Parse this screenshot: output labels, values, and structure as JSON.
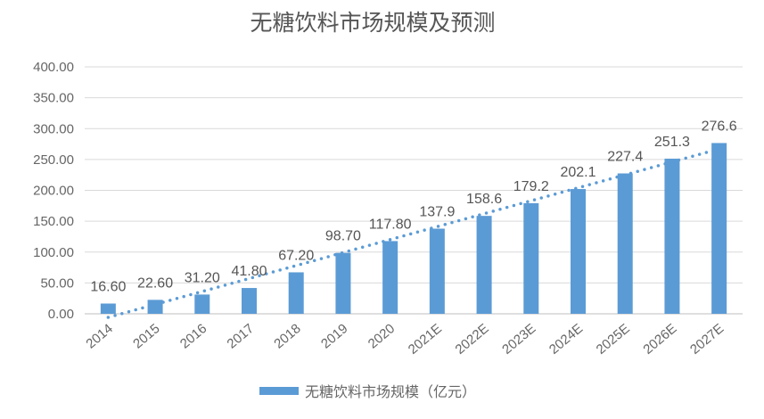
{
  "chart_data": {
    "type": "bar",
    "title": "无糖饮料市场规模及预测",
    "categories": [
      "2014",
      "2015",
      "2016",
      "2017",
      "2018",
      "2019",
      "2020",
      "2021E",
      "2022E",
      "2023E",
      "2024E",
      "2025E",
      "2026E",
      "2027E"
    ],
    "series": [
      {
        "name": "无糖饮料市场规模（亿元）",
        "values": [
          16.6,
          22.6,
          31.2,
          41.8,
          67.2,
          98.7,
          117.8,
          137.9,
          158.6,
          179.2,
          202.1,
          227.4,
          251.3,
          276.6
        ],
        "color": "#5b9bd5"
      }
    ],
    "data_labels": [
      "16.60",
      "22.60",
      "31.20",
      "41.80",
      "67.20",
      "98.70",
      "117.80",
      "137.9",
      "158.6",
      "179.2",
      "202.1",
      "227.4",
      "251.3",
      "276.6"
    ],
    "y_ticks": [
      "0.00",
      "50.00",
      "100.00",
      "150.00",
      "200.00",
      "250.00",
      "300.00",
      "350.00",
      "400.00"
    ],
    "ylim": [
      0,
      400
    ],
    "xlabel": "",
    "ylabel": "",
    "grid": true,
    "trendline": {
      "type": "linear",
      "style": "dotted",
      "color": "#5b9bd5"
    },
    "legend_position": "bottom"
  }
}
